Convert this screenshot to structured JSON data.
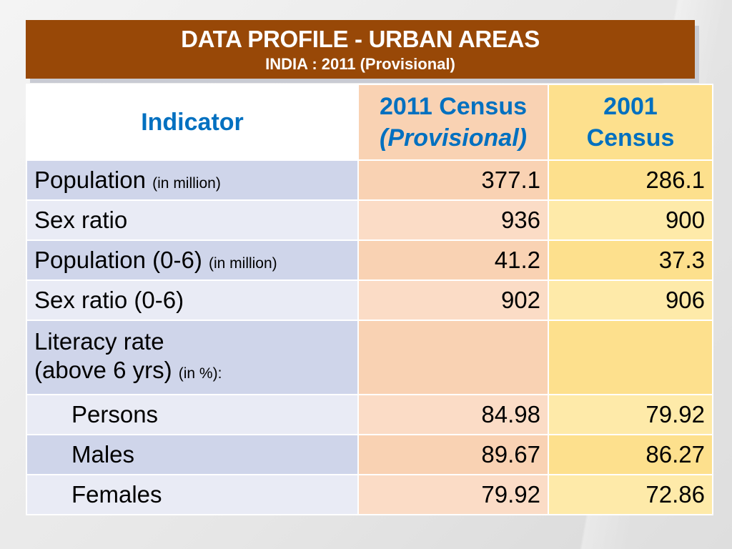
{
  "title": "DATA PROFILE - URBAN AREAS",
  "subtitle": "INDIA : 2011 (Provisional)",
  "headers": {
    "indicator": "Indicator",
    "col1_line1": "2011 Census",
    "col1_line2": "(Provisional)",
    "col2_line1": "2001",
    "col2_line2": "Census"
  },
  "rows": [
    {
      "label": "Population",
      "unit": "(in million)",
      "v2011": "377.1",
      "v2001": "286.1"
    },
    {
      "label": "Sex ratio",
      "unit": "",
      "v2011": "936",
      "v2001": "900"
    },
    {
      "label": "Population (0-6)",
      "unit": "(in million)",
      "v2011": "41.2",
      "v2001": "37.3"
    },
    {
      "label": "Sex ratio (0-6)",
      "unit": "",
      "v2011": "902",
      "v2001": "906"
    },
    {
      "label": "Literacy rate",
      "label2": "(above 6 yrs)",
      "unit": "(in %):",
      "v2011": "",
      "v2001": ""
    },
    {
      "label": "Persons",
      "v2011": "84.98",
      "v2001": "79.92"
    },
    {
      "label": "Males",
      "v2011": "89.67",
      "v2001": "86.27"
    },
    {
      "label": "Females",
      "v2011": "79.92",
      "v2001": "72.86"
    }
  ],
  "colors": {
    "title_bg": "#984807",
    "header_text": "#0070c0",
    "col2011": "#f9d2b3",
    "col2001": "#fde08d",
    "indicator": "#cfd5ea"
  }
}
